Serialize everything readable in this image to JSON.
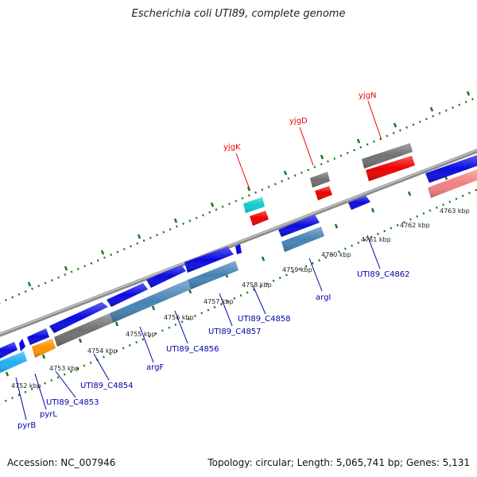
{
  "title": "Escherichia coli UTI89, complete genome",
  "footer": {
    "accession": "Accession: NC_007946",
    "summary": "Topology: circular; Length: 5,065,741 bp; Genes: 5,131"
  },
  "colors": {
    "backbone": "#8a8a8a",
    "tick": "#1a7a1a",
    "cds_blue": "#0a0ae0",
    "cds_steel": "#4682b4",
    "cds_gray": "#707070",
    "cds_red": "#ee0000",
    "cds_cyan": "#10cccc",
    "cds_skyblue": "#20b0f0",
    "cds_orange": "#ff9000",
    "cds_pink": "#f08080",
    "label_red": "#ee0000",
    "label_blue": "#0000aa"
  },
  "kbp_labels": [
    "4752 kbp",
    "4753 kbp",
    "4754 kbp",
    "4755 kbp",
    "4756 kbp",
    "4757 kbp",
    "4758 kbp",
    "4759 kbp",
    "4760 kbp",
    "4761 kbp",
    "4762 kbp",
    "4763 kbp"
  ],
  "gene_labels": {
    "yjgK": "yjgK",
    "yjgD": "yjgD",
    "yjgN": "yjgN",
    "pyrB": "pyrB",
    "pyrL": "pyrL",
    "c4853": "UTI89_C4853",
    "c4854": "UTI89_C4854",
    "argF": "argF",
    "c4856": "UTI89_C4856",
    "c4857": "UTI89_C4857",
    "c4858": "UTI89_C4858",
    "argI": "argI",
    "c4862": "UTI89_C4862"
  }
}
